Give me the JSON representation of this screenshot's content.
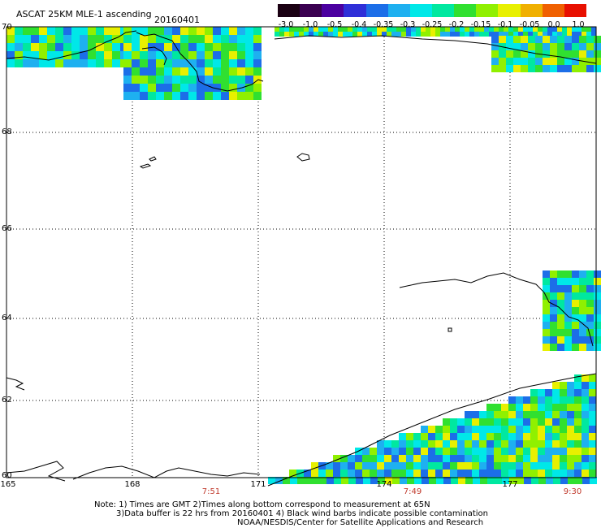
{
  "header": {
    "title": "ASCAT 25KM MLE-1 ascending",
    "date": "20160401"
  },
  "colorbar": {
    "labels": [
      "-3.0",
      "-1.0",
      "-0.5",
      "-0.4",
      "-0.35",
      "-0.3",
      "-0.25",
      "-0.2",
      "-0.15",
      "-0.1",
      "-0.05",
      "0.0",
      "1.0"
    ],
    "colors": [
      "#1a0012",
      "#3a0050",
      "#4b00a0",
      "#2f2fd8",
      "#1c6ee8",
      "#1eb0f0",
      "#00e8e8",
      "#00e8a0",
      "#30e030",
      "#90f000",
      "#e8f000",
      "#f0b000",
      "#f06000",
      "#e81000"
    ]
  },
  "axes": {
    "lat_labels": [
      "70",
      "68",
      "66",
      "64",
      "62",
      "60"
    ],
    "lon_labels": [
      "165",
      "168",
      "171",
      "174",
      "177"
    ],
    "time_labels": [
      "7:51",
      "7:49",
      "9:30"
    ]
  },
  "footer": {
    "line1": "Note: 1) Times are GMT 2)Times along bottom correspond to measurement at 65N",
    "line2": "3)Data buffer is 22 hrs from 20160401 4) Black wind barbs indicate possible contamination",
    "line3": "NOAA/NESDIS/Center for Satellite Applications and Research"
  }
}
